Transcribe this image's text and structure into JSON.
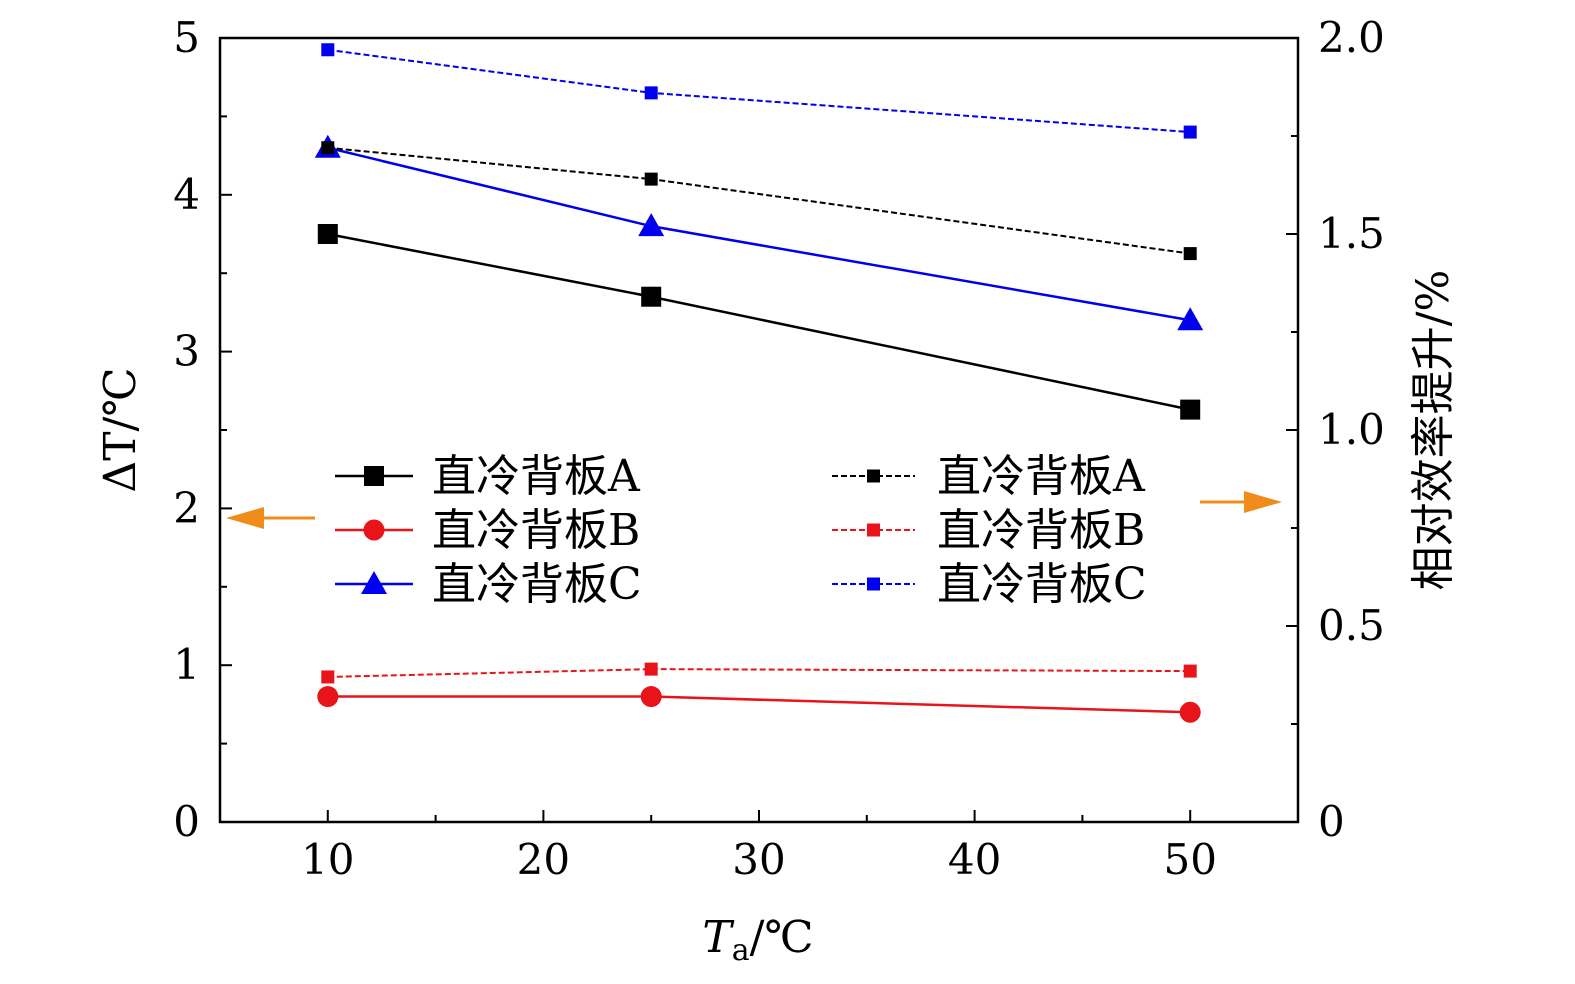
{
  "chart_data": {
    "type": "line",
    "x": [
      10,
      25,
      50
    ],
    "xlabel": "Ta/℃",
    "xlabel_main": "T",
    "xlabel_sub": "a",
    "xlabel_unit": "/℃",
    "ylabel": "ΔT/℃",
    "y2label": "相对效率提升/%",
    "xlim": [
      5,
      55
    ],
    "ylim": [
      0,
      5
    ],
    "y2lim": [
      0,
      2.0
    ],
    "xticks": [
      "10",
      "20",
      "30",
      "40",
      "50"
    ],
    "yticks": [
      "0",
      "1",
      "2",
      "3",
      "4",
      "5"
    ],
    "y2ticks": [
      "0",
      "0.5",
      "1.0",
      "1.5",
      "2.0"
    ],
    "grid": false,
    "legend_placement": "center",
    "series": [
      {
        "name": "直冷背板A",
        "axis": "left",
        "values": [
          3.75,
          3.35,
          2.63
        ],
        "color": "#000000",
        "marker": "square",
        "dash": false
      },
      {
        "name": "直冷背板B",
        "axis": "left",
        "values": [
          0.8,
          0.8,
          0.7
        ],
        "color": "#e8141a",
        "marker": "circle",
        "dash": false
      },
      {
        "name": "直冷背板C",
        "axis": "left",
        "values": [
          4.3,
          3.8,
          3.2
        ],
        "color": "#0000ee",
        "marker": "triangle",
        "dash": false
      },
      {
        "name": "直冷背板A",
        "axis": "right",
        "values": [
          1.72,
          1.64,
          1.45
        ],
        "color": "#000000",
        "marker": "small-square",
        "dash": true
      },
      {
        "name": "直冷背板B",
        "axis": "right",
        "values": [
          0.37,
          0.39,
          0.385
        ],
        "color": "#e8141a",
        "marker": "small-square",
        "dash": true
      },
      {
        "name": "直冷背板C",
        "axis": "right",
        "values": [
          1.97,
          1.86,
          1.76
        ],
        "color": "#0000ee",
        "marker": "small-square",
        "dash": true
      }
    ],
    "arrow_color": "#f08c1a"
  }
}
